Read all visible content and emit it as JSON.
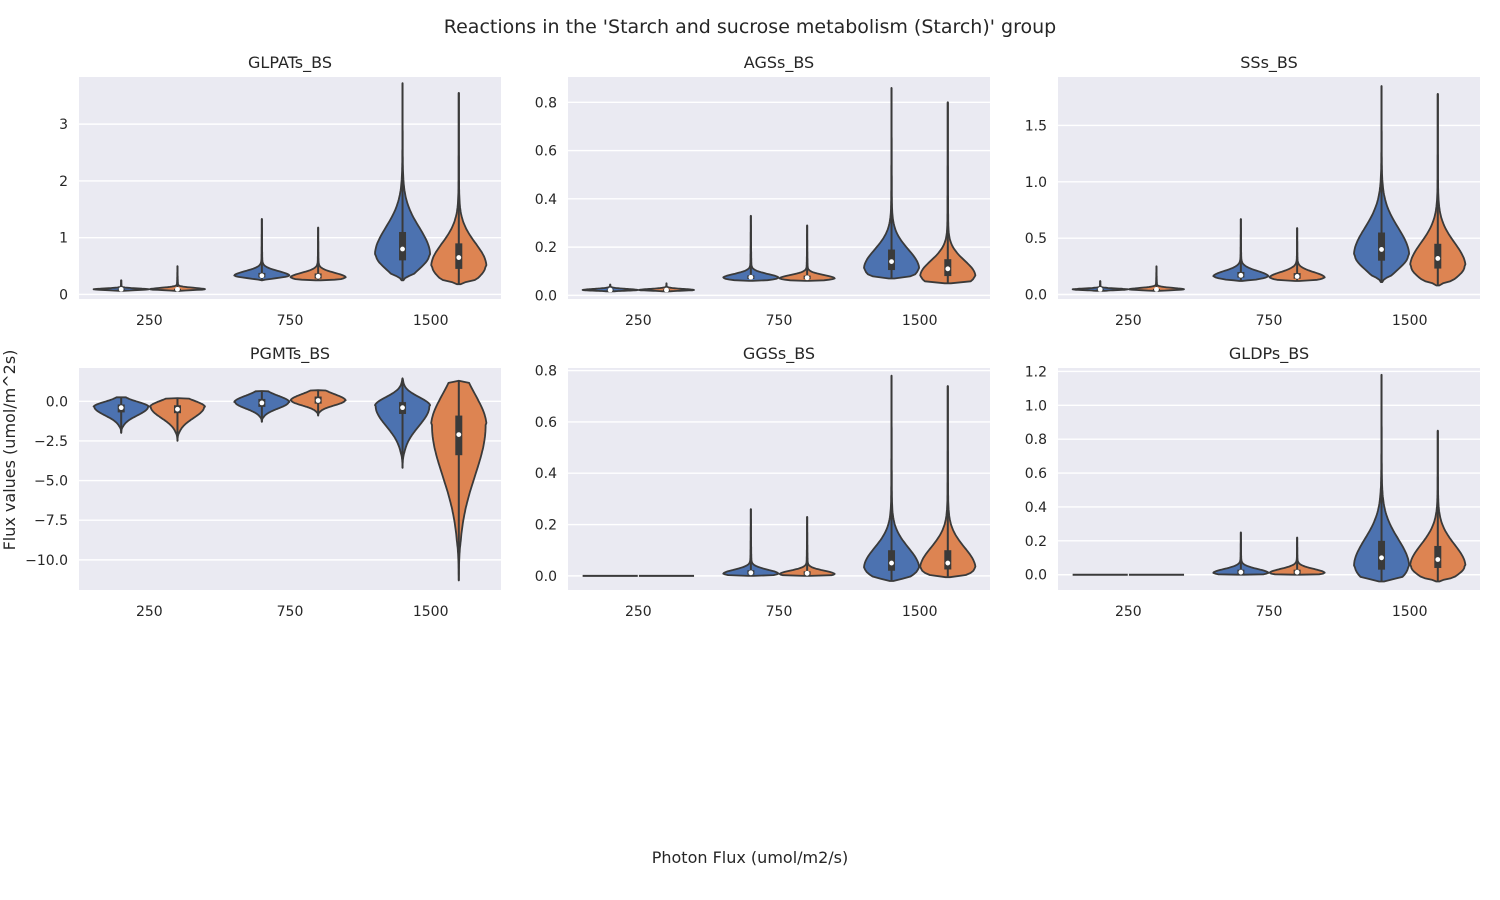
{
  "figure": {
    "title": "Reactions in the 'Starch and sucrose metabolism (Starch)' group",
    "xlabel": "Photon Flux (umol/m2/s)",
    "ylabel": "Flux values (umol/m^2s)"
  },
  "colors": {
    "series_1": "#4c72b0",
    "series_2": "#dd8452",
    "panel_bg": "#eaeaf2",
    "grid": "#ffffff",
    "outline": "#3a3a3a",
    "box": "#3a3a3a",
    "median": "#ffffff"
  },
  "chart_data": [
    {
      "type": "violin",
      "title": "GLPATs_BS",
      "categories": [
        "250",
        "750",
        "1500"
      ],
      "ylim": [
        -0.08,
        3.83
      ],
      "yticks": [
        0,
        1,
        2,
        3
      ],
      "yticklabels": [
        "0",
        "1",
        "2",
        "3"
      ],
      "grid": true,
      "series": [
        {
          "stats": [
            {
              "min": 0.06,
              "q1": 0.08,
              "median": 0.09,
              "q3": 0.1,
              "max": 0.25,
              "mode": 0.09
            },
            {
              "min": 0.25,
              "q1": 0.3,
              "median": 0.33,
              "q3": 0.38,
              "max": 1.33,
              "mode": 0.33
            },
            {
              "min": 0.25,
              "q1": 0.6,
              "median": 0.8,
              "q3": 1.1,
              "max": 3.72,
              "mode": 0.7
            }
          ]
        },
        {
          "stats": [
            {
              "min": 0.06,
              "q1": 0.08,
              "median": 0.09,
              "q3": 0.1,
              "max": 0.5,
              "mode": 0.09
            },
            {
              "min": 0.25,
              "q1": 0.28,
              "median": 0.32,
              "q3": 0.37,
              "max": 1.18,
              "mode": 0.3
            },
            {
              "min": 0.18,
              "q1": 0.45,
              "median": 0.65,
              "q3": 0.9,
              "max": 3.55,
              "mode": 0.5
            }
          ]
        }
      ]
    },
    {
      "type": "violin",
      "title": "AGSs_BS",
      "categories": [
        "250",
        "750",
        "1500"
      ],
      "ylim": [
        -0.015,
        0.905
      ],
      "yticks": [
        0,
        0.2,
        0.4,
        0.6,
        0.8
      ],
      "yticklabels": [
        "0.0",
        "0.2",
        "0.4",
        "0.6",
        "0.8"
      ],
      "grid": true,
      "series": [
        {
          "stats": [
            {
              "min": 0.015,
              "q1": 0.02,
              "median": 0.022,
              "q3": 0.025,
              "max": 0.045,
              "mode": 0.022
            },
            {
              "min": 0.06,
              "q1": 0.068,
              "median": 0.075,
              "q3": 0.083,
              "max": 0.33,
              "mode": 0.072
            },
            {
              "min": 0.07,
              "q1": 0.105,
              "median": 0.14,
              "q3": 0.19,
              "max": 0.86,
              "mode": 0.11
            }
          ]
        },
        {
          "stats": [
            {
              "min": 0.015,
              "q1": 0.02,
              "median": 0.022,
              "q3": 0.025,
              "max": 0.05,
              "mode": 0.022
            },
            {
              "min": 0.06,
              "q1": 0.067,
              "median": 0.073,
              "q3": 0.082,
              "max": 0.29,
              "mode": 0.07
            },
            {
              "min": 0.05,
              "q1": 0.08,
              "median": 0.11,
              "q3": 0.15,
              "max": 0.8,
              "mode": 0.08
            }
          ]
        }
      ]
    },
    {
      "type": "violin",
      "title": "SSs_BS",
      "categories": [
        "250",
        "750",
        "1500"
      ],
      "ylim": [
        -0.04,
        1.93
      ],
      "yticks": [
        0,
        0.5,
        1,
        1.5
      ],
      "yticklabels": [
        "0.0",
        "0.5",
        "1.0",
        "1.5"
      ],
      "grid": true,
      "series": [
        {
          "stats": [
            {
              "min": 0.03,
              "q1": 0.04,
              "median": 0.045,
              "q3": 0.05,
              "max": 0.12,
              "mode": 0.045
            },
            {
              "min": 0.12,
              "q1": 0.15,
              "median": 0.17,
              "q3": 0.2,
              "max": 0.67,
              "mode": 0.16
            },
            {
              "min": 0.11,
              "q1": 0.3,
              "median": 0.4,
              "q3": 0.55,
              "max": 1.85,
              "mode": 0.35
            }
          ]
        },
        {
          "stats": [
            {
              "min": 0.03,
              "q1": 0.04,
              "median": 0.045,
              "q3": 0.05,
              "max": 0.25,
              "mode": 0.045
            },
            {
              "min": 0.12,
              "q1": 0.14,
              "median": 0.16,
              "q3": 0.19,
              "max": 0.59,
              "mode": 0.15
            },
            {
              "min": 0.08,
              "q1": 0.23,
              "median": 0.32,
              "q3": 0.45,
              "max": 1.78,
              "mode": 0.25
            }
          ]
        }
      ]
    },
    {
      "type": "violin",
      "title": "PGMTs_BS",
      "categories": [
        "250",
        "750",
        "1500"
      ],
      "ylim": [
        -11.9,
        2.1
      ],
      "yticks": [
        0,
        -2.5,
        -5,
        -7.5,
        -10
      ],
      "yticklabels": [
        "0.0",
        "−2.5",
        "−5.0",
        "−7.5",
        "−10.0"
      ],
      "grid": true,
      "series": [
        {
          "stats": [
            {
              "min": -2.0,
              "q1": -0.7,
              "median": -0.4,
              "q3": -0.2,
              "max": 0.25,
              "mode": -0.35
            },
            {
              "min": -1.3,
              "q1": -0.35,
              "median": -0.1,
              "q3": 0.15,
              "max": 0.65,
              "mode": -0.05
            },
            {
              "min": -4.2,
              "q1": -0.8,
              "median": -0.4,
              "q3": -0.05,
              "max": 1.45,
              "mode": -0.3
            }
          ]
        },
        {
          "stats": [
            {
              "min": -2.5,
              "q1": -0.75,
              "median": -0.5,
              "q3": -0.25,
              "max": 0.2,
              "mode": -0.35
            },
            {
              "min": -0.9,
              "q1": -0.15,
              "median": 0.05,
              "q3": 0.3,
              "max": 0.7,
              "mode": 0.05
            },
            {
              "min": -11.3,
              "q1": -3.4,
              "median": -2.1,
              "q3": -0.9,
              "max": 1.3,
              "mode": -1.5
            }
          ]
        }
      ]
    },
    {
      "type": "violin",
      "title": "GGSs_BS",
      "categories": [
        "250",
        "750",
        "1500"
      ],
      "ylim": [
        -0.055,
        0.81
      ],
      "yticks": [
        0,
        0.2,
        0.4,
        0.6,
        0.8
      ],
      "yticklabels": [
        "0.0",
        "0.2",
        "0.4",
        "0.6",
        "0.8"
      ],
      "grid": true,
      "series": [
        {
          "stats": [
            {
              "min": 0,
              "q1": 0,
              "median": 0,
              "q3": 0,
              "max": 0,
              "mode": 0
            },
            {
              "min": 0.0,
              "q1": 0.005,
              "median": 0.012,
              "q3": 0.022,
              "max": 0.26,
              "mode": 0.008
            },
            {
              "min": -0.02,
              "q1": 0.02,
              "median": 0.05,
              "q3": 0.1,
              "max": 0.78,
              "mode": 0.03
            }
          ]
        },
        {
          "stats": [
            {
              "min": 0,
              "q1": 0,
              "median": 0,
              "q3": 0,
              "max": 0,
              "mode": 0
            },
            {
              "min": 0.0,
              "q1": 0.004,
              "median": 0.01,
              "q3": 0.018,
              "max": 0.23,
              "mode": 0.006
            },
            {
              "min": -0.005,
              "q1": 0.025,
              "median": 0.05,
              "q3": 0.1,
              "max": 0.74,
              "mode": 0.03
            }
          ]
        }
      ]
    },
    {
      "type": "violin",
      "title": "GLDPs_BS",
      "categories": [
        "250",
        "750",
        "1500"
      ],
      "ylim": [
        -0.09,
        1.22
      ],
      "yticks": [
        0,
        0.2,
        0.4,
        0.6,
        0.8,
        1,
        1.2
      ],
      "yticklabels": [
        "0.0",
        "0.2",
        "0.4",
        "0.6",
        "0.8",
        "1.0",
        "1.2"
      ],
      "grid": true,
      "series": [
        {
          "stats": [
            {
              "min": 0,
              "q1": 0,
              "median": 0,
              "q3": 0,
              "max": 0,
              "mode": 0
            },
            {
              "min": 0.0,
              "q1": 0.005,
              "median": 0.015,
              "q3": 0.03,
              "max": 0.25,
              "mode": 0.01
            },
            {
              "min": -0.04,
              "q1": 0.03,
              "median": 0.1,
              "q3": 0.2,
              "max": 1.18,
              "mode": 0.05
            }
          ]
        },
        {
          "stats": [
            {
              "min": 0,
              "q1": 0,
              "median": 0,
              "q3": 0,
              "max": 0,
              "mode": 0
            },
            {
              "min": 0.0,
              "q1": 0.005,
              "median": 0.015,
              "q3": 0.03,
              "max": 0.22,
              "mode": 0.01
            },
            {
              "min": -0.04,
              "q1": 0.04,
              "median": 0.09,
              "q3": 0.17,
              "max": 0.85,
              "mode": 0.05
            }
          ]
        }
      ]
    }
  ]
}
